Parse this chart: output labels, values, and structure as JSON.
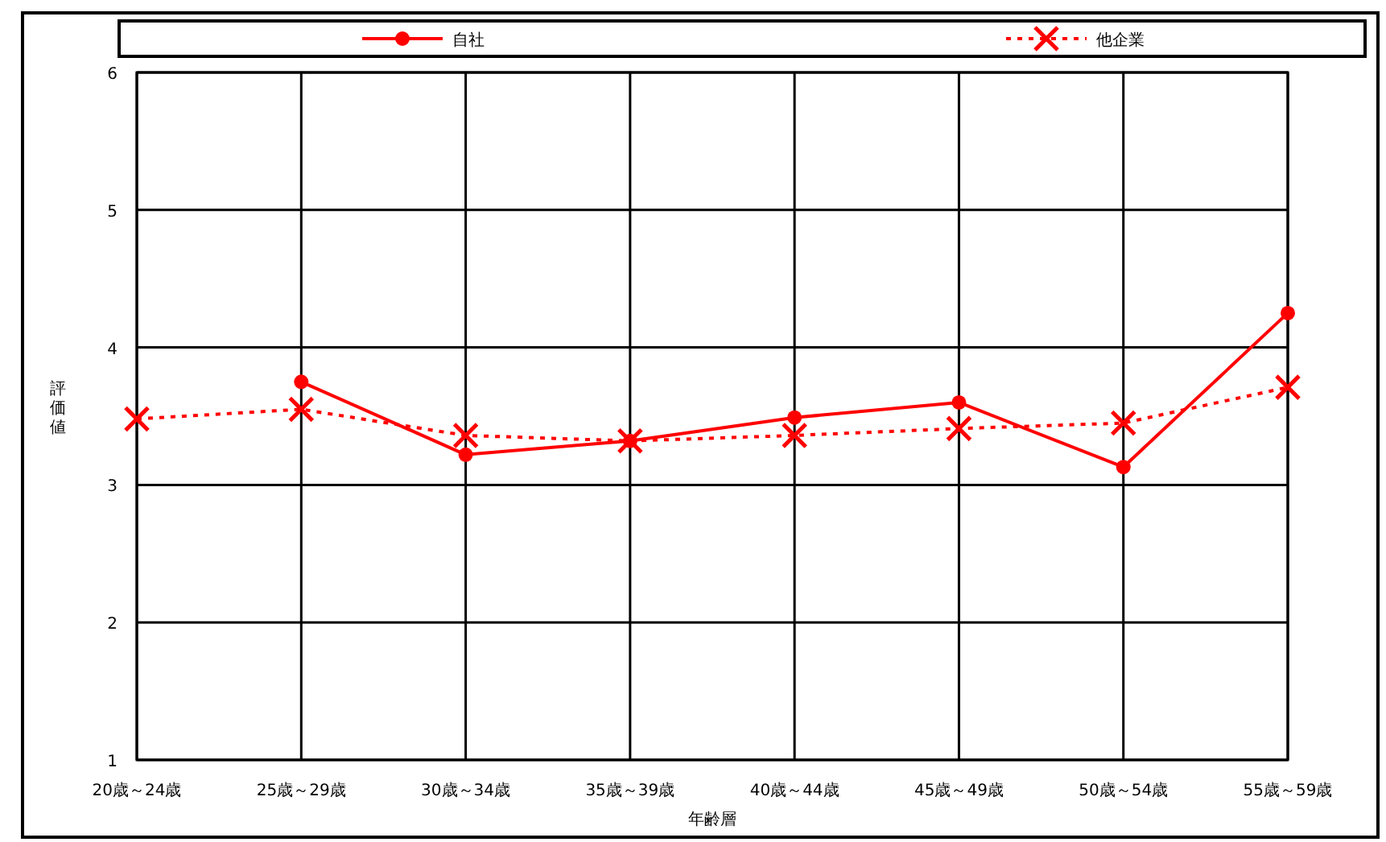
{
  "chart_data": {
    "type": "line",
    "xlabel": "年齢層",
    "ylabel": "評価値",
    "categories": [
      "20歳～24歳",
      "25歳～29歳",
      "30歳～34歳",
      "35歳～39歳",
      "40歳～44歳",
      "45歳～49歳",
      "50歳～54歳",
      "55歳～59歳"
    ],
    "series": [
      {
        "name": "自社",
        "color": "#ff0000",
        "marker": "circle",
        "line_style": "solid",
        "values": [
          null,
          3.75,
          3.22,
          3.32,
          3.49,
          3.6,
          3.13,
          4.25
        ]
      },
      {
        "name": "他企業",
        "color": "#ff0000",
        "marker": "cross",
        "line_style": "dotted",
        "values": [
          3.48,
          3.55,
          3.36,
          3.32,
          3.36,
          3.41,
          3.45,
          3.71
        ]
      }
    ],
    "ylim": [
      1,
      6
    ],
    "yticks": [
      1,
      2,
      3,
      4,
      5,
      6
    ],
    "grid": true,
    "legend": "top"
  }
}
